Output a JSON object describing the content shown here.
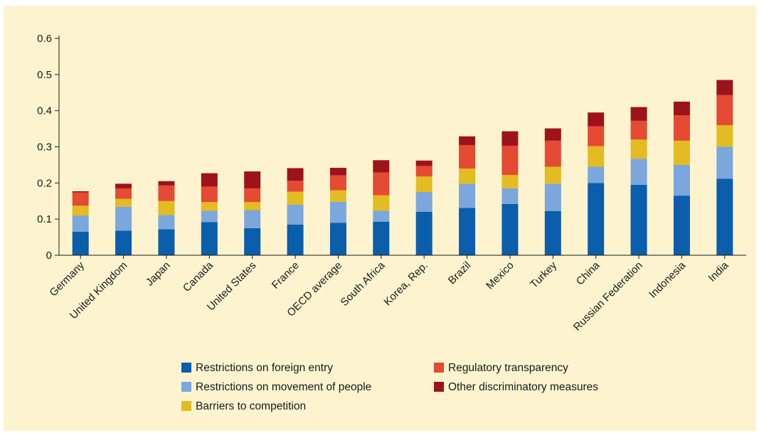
{
  "chart_data": {
    "type": "bar",
    "stacked": true,
    "title": "",
    "xlabel": "",
    "ylabel": "",
    "ylim": [
      0,
      0.6
    ],
    "yticks": [
      "0",
      "0.1",
      "0.2",
      "0.3",
      "0.4",
      "0.5",
      "0.6"
    ],
    "grid": false,
    "legend_position": "bottom",
    "categories": [
      "Germany",
      "United Kingdom",
      "Japan",
      "Canada",
      "United States",
      "France",
      "OECD average",
      "South Africa",
      "Korea, Rep.",
      "Brazil",
      "Mexico",
      "Turkey",
      "China",
      "Russian Federation",
      "Indonesia",
      "India"
    ],
    "series": [
      {
        "name": "Restrictions on foreign entry",
        "color": "#0a5eab",
        "values": [
          0.065,
          0.068,
          0.072,
          0.092,
          0.075,
          0.085,
          0.09,
          0.093,
          0.12,
          0.131,
          0.142,
          0.122,
          0.2,
          0.195,
          0.165,
          0.212
        ]
      },
      {
        "name": "Restrictions on movement of people",
        "color": "#7ba7dc",
        "values": [
          0.045,
          0.066,
          0.039,
          0.031,
          0.05,
          0.055,
          0.058,
          0.03,
          0.055,
          0.067,
          0.043,
          0.076,
          0.045,
          0.072,
          0.085,
          0.088
        ]
      },
      {
        "name": "Barriers to competition",
        "color": "#e3bb22",
        "values": [
          0.027,
          0.022,
          0.039,
          0.024,
          0.022,
          0.036,
          0.032,
          0.043,
          0.043,
          0.042,
          0.037,
          0.047,
          0.057,
          0.053,
          0.067,
          0.06
        ]
      },
      {
        "name": "Regulatory transparency",
        "color": "#e54a33",
        "values": [
          0.037,
          0.029,
          0.043,
          0.043,
          0.038,
          0.03,
          0.041,
          0.063,
          0.029,
          0.065,
          0.081,
          0.072,
          0.055,
          0.052,
          0.07,
          0.083
        ]
      },
      {
        "name": "Other discriminatory measures",
        "color": "#9c1419",
        "values": [
          0.003,
          0.013,
          0.012,
          0.037,
          0.047,
          0.035,
          0.021,
          0.034,
          0.015,
          0.024,
          0.04,
          0.034,
          0.038,
          0.038,
          0.038,
          0.042
        ]
      }
    ]
  }
}
